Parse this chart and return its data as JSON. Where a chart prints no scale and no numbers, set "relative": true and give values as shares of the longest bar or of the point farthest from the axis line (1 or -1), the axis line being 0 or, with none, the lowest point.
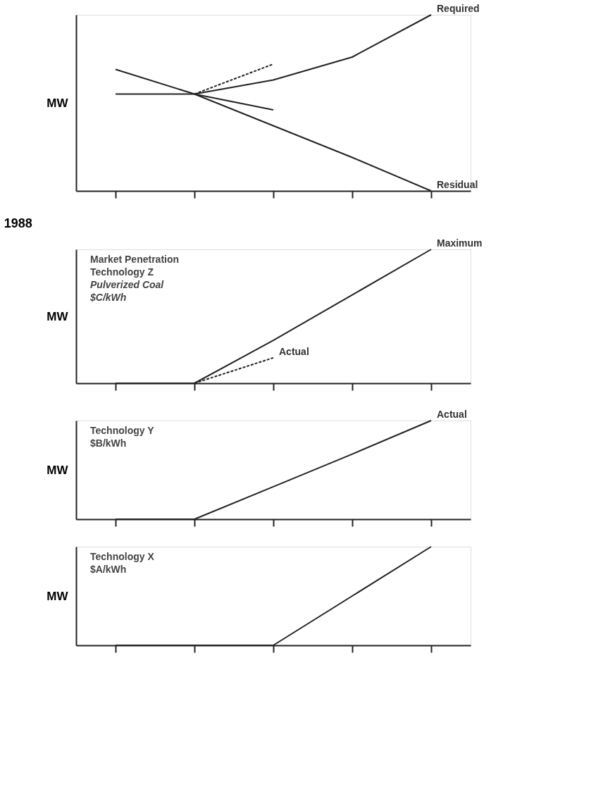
{
  "chart_data": [
    {
      "type": "line",
      "relative": true,
      "ylabel": "MW",
      "categories": [
        null,
        null,
        null,
        null,
        null
      ],
      "grid": false,
      "series": [
        {
          "name": "Required",
          "color": "#222222",
          "values": [
            0.55,
            0.55,
            0.63,
            0.76,
            1
          ]
        },
        {
          "name": "Residual",
          "color": "#222222",
          "values": [
            0.69,
            0.55,
            0.37,
            0.19,
            0
          ]
        },
        {
          "color": "#222222",
          "line_style": "dashed",
          "values": [
            null,
            0.55,
            0.72,
            null,
            null
          ]
        },
        {
          "color": "#222222",
          "values": [
            null,
            0.55,
            0.46,
            null,
            null
          ]
        }
      ]
    },
    {
      "type": "line",
      "relative": true,
      "title": "1988",
      "ylabel": "MW",
      "categories": [
        null,
        null,
        null,
        null,
        null
      ],
      "grid": false,
      "annotations": [
        "Market Penetration",
        "Technology Z",
        "Pulverized Coal",
        "$C/kWh"
      ],
      "series": [
        {
          "name": "Maximum",
          "color": "#222222",
          "values": [
            0,
            0,
            0.32,
            0.66,
            1
          ]
        },
        {
          "name": "Actual",
          "color": "#222222",
          "line_style": "dashed",
          "values": [
            null,
            0,
            0.19,
            null,
            null
          ]
        }
      ]
    },
    {
      "type": "line",
      "relative": true,
      "ylabel": "MW",
      "categories": [
        null,
        null,
        null,
        null,
        null
      ],
      "grid": false,
      "annotations": [
        "Technology Y",
        "$B/kWh"
      ],
      "series": [
        {
          "name": "Actual",
          "color": "#222222",
          "values": [
            0,
            0,
            0.33,
            0.66,
            1
          ]
        }
      ]
    },
    {
      "type": "line",
      "relative": true,
      "ylabel": "MW",
      "categories": [
        null,
        null,
        null,
        null,
        null
      ],
      "grid": false,
      "annotations": [
        "Technology X",
        "$A/kWh"
      ],
      "series": [
        {
          "color": "#222222",
          "values": [
            0,
            0,
            0,
            0.5,
            1
          ]
        }
      ]
    }
  ]
}
